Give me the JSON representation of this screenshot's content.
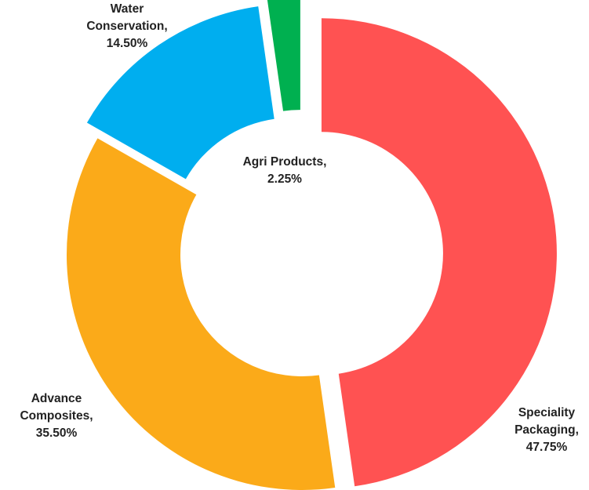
{
  "chart_data": {
    "type": "pie",
    "donut": true,
    "exploded": true,
    "title": "",
    "slices": [
      {
        "label": "Speciality Packaging",
        "value": 47.75,
        "display": "47.75%",
        "color": "#FF5252",
        "label_lines": [
          "Speciality",
          "Packaging,",
          "47.75%"
        ]
      },
      {
        "label": "Advance Composites",
        "value": 35.5,
        "display": "35.50%",
        "color": "#FBAA19",
        "label_lines": [
          "Advance",
          "Composites,",
          "35.50%"
        ]
      },
      {
        "label": "Water Conservation",
        "value": 14.5,
        "display": "14.50%",
        "color": "#00AEEF",
        "label_lines": [
          "Water",
          "Conservation,",
          "14.50%"
        ]
      },
      {
        "label": "Agri Products",
        "value": 2.25,
        "display": "2.25%",
        "color": "#00B050",
        "label_lines": [
          "Agri Products,",
          "2.25%"
        ]
      }
    ],
    "legend": "none",
    "start_angle": "top, clockwise"
  }
}
